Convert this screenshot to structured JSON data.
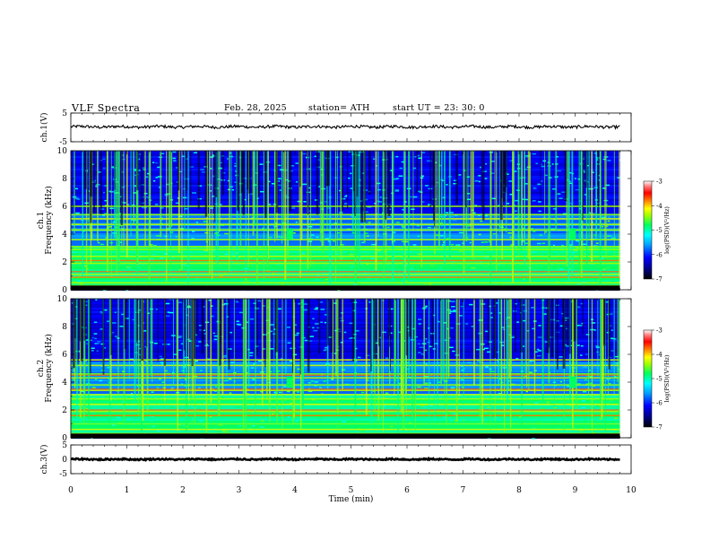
{
  "header": {
    "title": "VLF  Spectra",
    "date": "Feb. 28, 2025",
    "station": "station= ATH",
    "start": "start  UT  =   23: 30: 0"
  },
  "chart_data": [
    {
      "id": "ch1_wave",
      "type": "line",
      "ylabel": "ch.1(V)",
      "ylim": [
        -5,
        5
      ],
      "yticks": [
        "5",
        "-5"
      ],
      "xlim": [
        0,
        10
      ],
      "baseline": 0.2,
      "noise_amplitude": 0.5,
      "x_end": 9.8
    },
    {
      "id": "ch1_spec",
      "type": "heatmap",
      "ylabel": "ch.1\nFrequency (kHz)",
      "ylabel_lines": [
        "ch.1",
        "Frequency  (kHz)"
      ],
      "ylim": [
        0,
        10
      ],
      "yticks": [
        "0",
        "2",
        "4",
        "6",
        "8",
        "10"
      ],
      "xlim": [
        0,
        10
      ],
      "x_end": 9.8,
      "colorbar": {
        "label": "log(PSD)(V²/Hz)",
        "ticks": [
          "-3",
          "-4",
          "-5",
          "-6",
          "-7"
        ],
        "range": [
          -7,
          -3
        ]
      },
      "lines_khz": [
        0.3,
        0.5,
        0.9,
        1.1,
        1.9,
        2.1,
        2.4,
        2.9,
        3.1,
        3.6,
        4.3,
        4.7,
        5.1,
        5.4,
        6.0
      ],
      "red_lines_khz": [
        0.9,
        1.3,
        2.1
      ],
      "bursts_min": [
        3.9,
        8.95
      ]
    },
    {
      "id": "ch2_spec",
      "type": "heatmap",
      "ylabel": "ch.2\nFrequency (kHz)",
      "ylabel_lines": [
        "ch.2",
        "Frequency  (kHz)"
      ],
      "ylim": [
        0,
        10
      ],
      "yticks": [
        "0",
        "2",
        "4",
        "6",
        "8",
        "10"
      ],
      "xlim": [
        0,
        10
      ],
      "x_end": 9.8,
      "colorbar": {
        "label": "log(PSD)(V²/Hz)",
        "ticks": [
          "-3",
          "-4",
          "-5",
          "-6",
          "-7"
        ],
        "range": [
          -7,
          -3
        ]
      },
      "lines_khz": [
        0.3,
        0.6,
        1.0,
        1.6,
        1.9,
        2.4,
        2.8,
        3.1,
        3.4,
        3.8,
        4.3,
        4.6,
        5.2,
        5.6
      ],
      "red_lines_khz": [
        1.6,
        2.0,
        3.5,
        4.5
      ],
      "bursts_min": [
        3.9,
        8.95
      ]
    },
    {
      "id": "ch3_wave",
      "type": "line",
      "ylabel": "ch.3(V)",
      "ylim": [
        -5,
        5
      ],
      "yticks": [
        "5",
        "0",
        "-5"
      ],
      "xlim": [
        0,
        10
      ],
      "baseline": 0,
      "noise_amplitude": 0.25,
      "x_end": 9.8
    }
  ],
  "xaxis": {
    "label": "Time  (min)",
    "ticks": [
      "0",
      "1",
      "2",
      "3",
      "4",
      "5",
      "6",
      "7",
      "8",
      "9",
      "10"
    ]
  }
}
